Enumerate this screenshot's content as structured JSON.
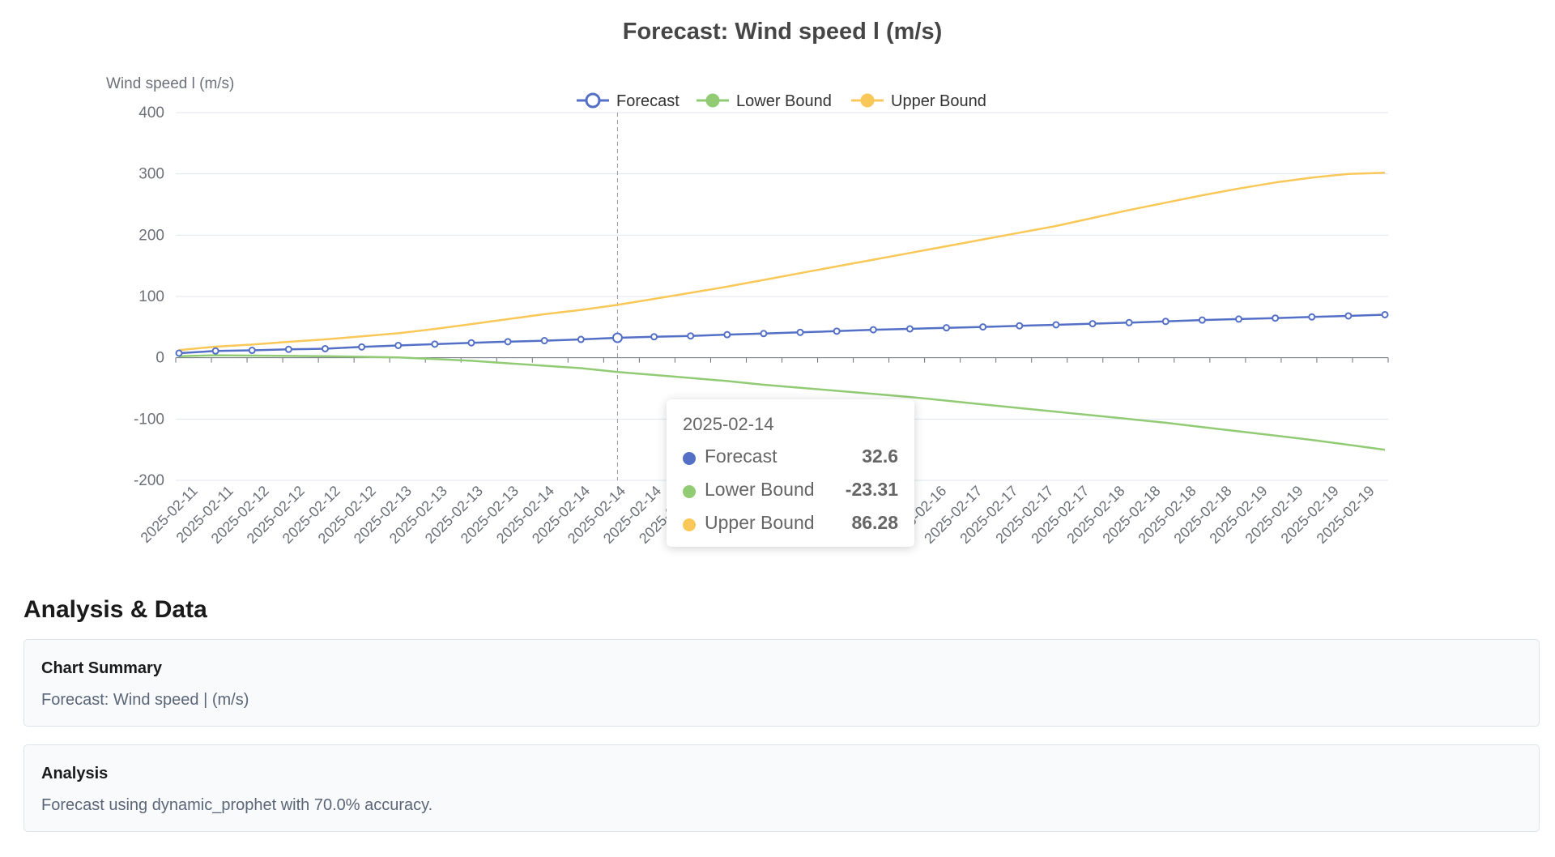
{
  "chart_data": {
    "type": "line",
    "title": "Forecast: Wind speed l (m/s)",
    "ylabel": "Wind speed l (m/s)",
    "xlabel": "",
    "ylim": [
      -200,
      400
    ],
    "yticks": [
      -200,
      -100,
      0,
      100,
      200,
      300,
      400
    ],
    "grid": true,
    "legend_position": "top",
    "x_tick_labels": [
      "2025-02-11",
      "2025-02-11",
      "2025-02-12",
      "2025-02-12",
      "2025-02-12",
      "2025-02-12",
      "2025-02-13",
      "2025-02-13",
      "2025-02-13",
      "2025-02-13",
      "2025-02-14",
      "2025-02-14",
      "2025-02-14",
      "2025-02-14",
      "2025-02-15",
      "2025-02-15",
      "2025-02-15",
      "2025-02-15",
      "2025-02-16",
      "2025-02-16",
      "2025-02-16",
      "2025-02-16",
      "2025-02-17",
      "2025-02-17",
      "2025-02-17",
      "2025-02-17",
      "2025-02-18",
      "2025-02-18",
      "2025-02-18",
      "2025-02-18",
      "2025-02-19",
      "2025-02-19",
      "2025-02-19",
      "2025-02-19"
    ],
    "series": [
      {
        "name": "Forecast",
        "color": "#5470c6",
        "values": [
          7.5,
          11.1,
          12.1,
          13.7,
          14.8,
          17.6,
          20.1,
          22.2,
          24.4,
          26.2,
          27.9,
          29.9,
          32.6,
          34.2,
          35.6,
          37.7,
          39.5,
          41.4,
          43.4,
          45.7,
          47.1,
          48.9,
          50.3,
          52.1,
          53.8,
          55.6,
          57.3,
          59.3,
          61.5,
          63.1,
          64.7,
          66.6,
          68.3,
          70.3
        ]
      },
      {
        "name": "Lower Bound",
        "color": "#91cc75",
        "values": [
          2.5,
          4.0,
          3.5,
          3.0,
          2.5,
          1.5,
          0.5,
          -2.0,
          -5.0,
          -9.0,
          -13.0,
          -17.0,
          -23.31,
          -28.0,
          -33.0,
          -38.0,
          -44.0,
          -49.0,
          -54.0,
          -59.0,
          -64.0,
          -70.0,
          -76.0,
          -82.0,
          -88.0,
          -94.0,
          -100.0,
          -106.0,
          -113.0,
          -120.0,
          -127.0,
          -134.0,
          -142.0,
          -150.0
        ]
      },
      {
        "name": "Upper Bound",
        "color": "#fac858",
        "values": [
          12.5,
          18.0,
          21.5,
          26.0,
          30.0,
          35.0,
          40.0,
          47.0,
          55.0,
          63.0,
          71.0,
          78.0,
          86.28,
          96.0,
          106.0,
          116.0,
          127.0,
          138.0,
          149.0,
          160.0,
          171.0,
          182.0,
          193.0,
          204.0,
          215.0,
          228.0,
          241.0,
          253.0,
          265.0,
          276.0,
          286.0,
          294.0,
          300.0,
          302.0
        ]
      }
    ],
    "tooltip": {
      "date": "2025-02-14",
      "index": 12,
      "rows": [
        {
          "name": "Forecast",
          "value": "32.6",
          "color": "#5470c6"
        },
        {
          "name": "Lower Bound",
          "value": "-23.31",
          "color": "#91cc75"
        },
        {
          "name": "Upper Bound",
          "value": "86.28",
          "color": "#fac858"
        }
      ]
    }
  },
  "analysis": {
    "heading": "Analysis & Data",
    "cards": [
      {
        "title": "Chart Summary",
        "body": "Forecast: Wind speed | (m/s)"
      },
      {
        "title": "Analysis",
        "body": "Forecast using dynamic_prophet with 70.0% accuracy."
      }
    ]
  }
}
